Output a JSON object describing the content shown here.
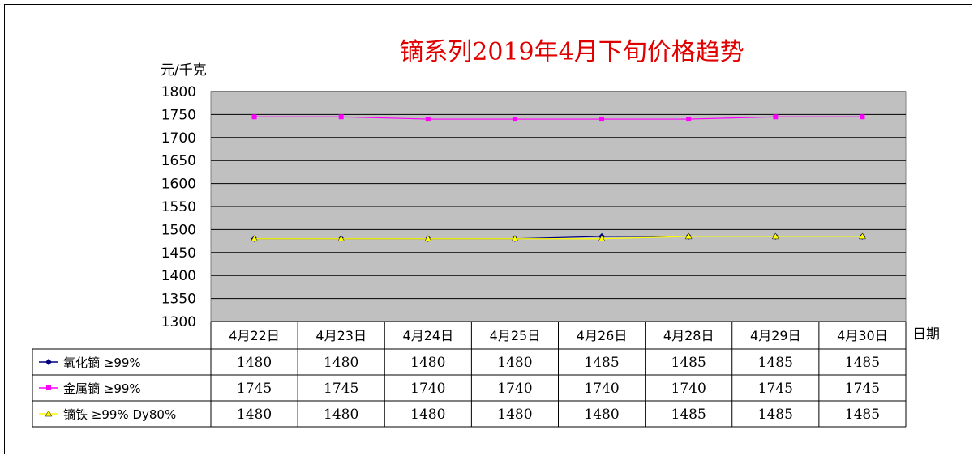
{
  "chart_data": {
    "type": "line",
    "title": "镝系列2019年4月下旬价格趋势",
    "ylabel": "元/千克",
    "xlabel": "日期",
    "ylim": [
      1300,
      1800
    ],
    "yticks": [
      1300,
      1350,
      1400,
      1450,
      1500,
      1550,
      1600,
      1650,
      1700,
      1750,
      1800
    ],
    "categories": [
      "4月22日",
      "4月23日",
      "4月24日",
      "4月25日",
      "4月26日",
      "4月28日",
      "4月29日",
      "4月30日"
    ],
    "series": [
      {
        "name": "氧化镝 ≥99%",
        "values": [
          1480,
          1480,
          1480,
          1480,
          1485,
          1485,
          1485,
          1485
        ],
        "color": "#000080",
        "marker": "diamond"
      },
      {
        "name": "金属镝 ≥99%",
        "values": [
          1745,
          1745,
          1740,
          1740,
          1740,
          1740,
          1745,
          1745
        ],
        "color": "#ff00ff",
        "marker": "square"
      },
      {
        "name": "镝铁 ≥99% Dy80%",
        "values": [
          1480,
          1480,
          1480,
          1480,
          1480,
          1485,
          1485,
          1485
        ],
        "color": "#ffff00",
        "marker": "triangle"
      }
    ],
    "grid": true,
    "plot_background": "#c0c0c0",
    "legend": "data-table"
  }
}
